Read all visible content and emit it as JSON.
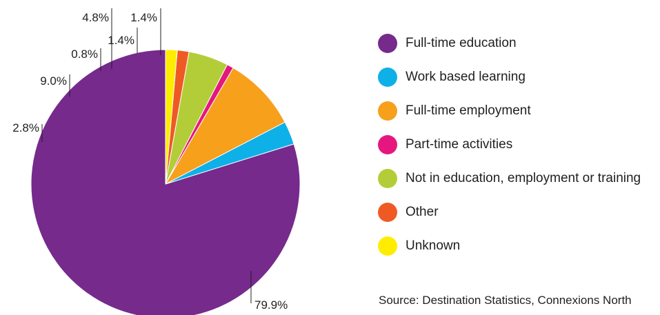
{
  "chart_data": {
    "type": "pie",
    "start": "12 o'clock",
    "direction": "counter-clockwise",
    "slices": [
      {
        "label": "Full-time education",
        "value": 79.9,
        "value_label": "79.9%",
        "color": "#762a8c"
      },
      {
        "label": "Work based learning",
        "value": 2.8,
        "value_label": "2.8%",
        "color": "#0eb0e8"
      },
      {
        "label": "Full-time employment",
        "value": 9.0,
        "value_label": "9.0%",
        "color": "#f6a01c"
      },
      {
        "label": "Part-time activities",
        "value": 0.8,
        "value_label": "0.8%",
        "color": "#e5177e"
      },
      {
        "label": "Not in education, employment or training",
        "value": 4.8,
        "value_label": "4.8%",
        "color": "#b3cd38"
      },
      {
        "label": "Other",
        "value": 1.4,
        "value_label": "1.4%",
        "color": "#ef5a24"
      },
      {
        "label": "Unknown",
        "value": 1.4,
        "value_label": "1.4%",
        "color": "#ffed00"
      }
    ],
    "legend_position": "right"
  },
  "source": "Source: Destination Statistics, Connexions North"
}
